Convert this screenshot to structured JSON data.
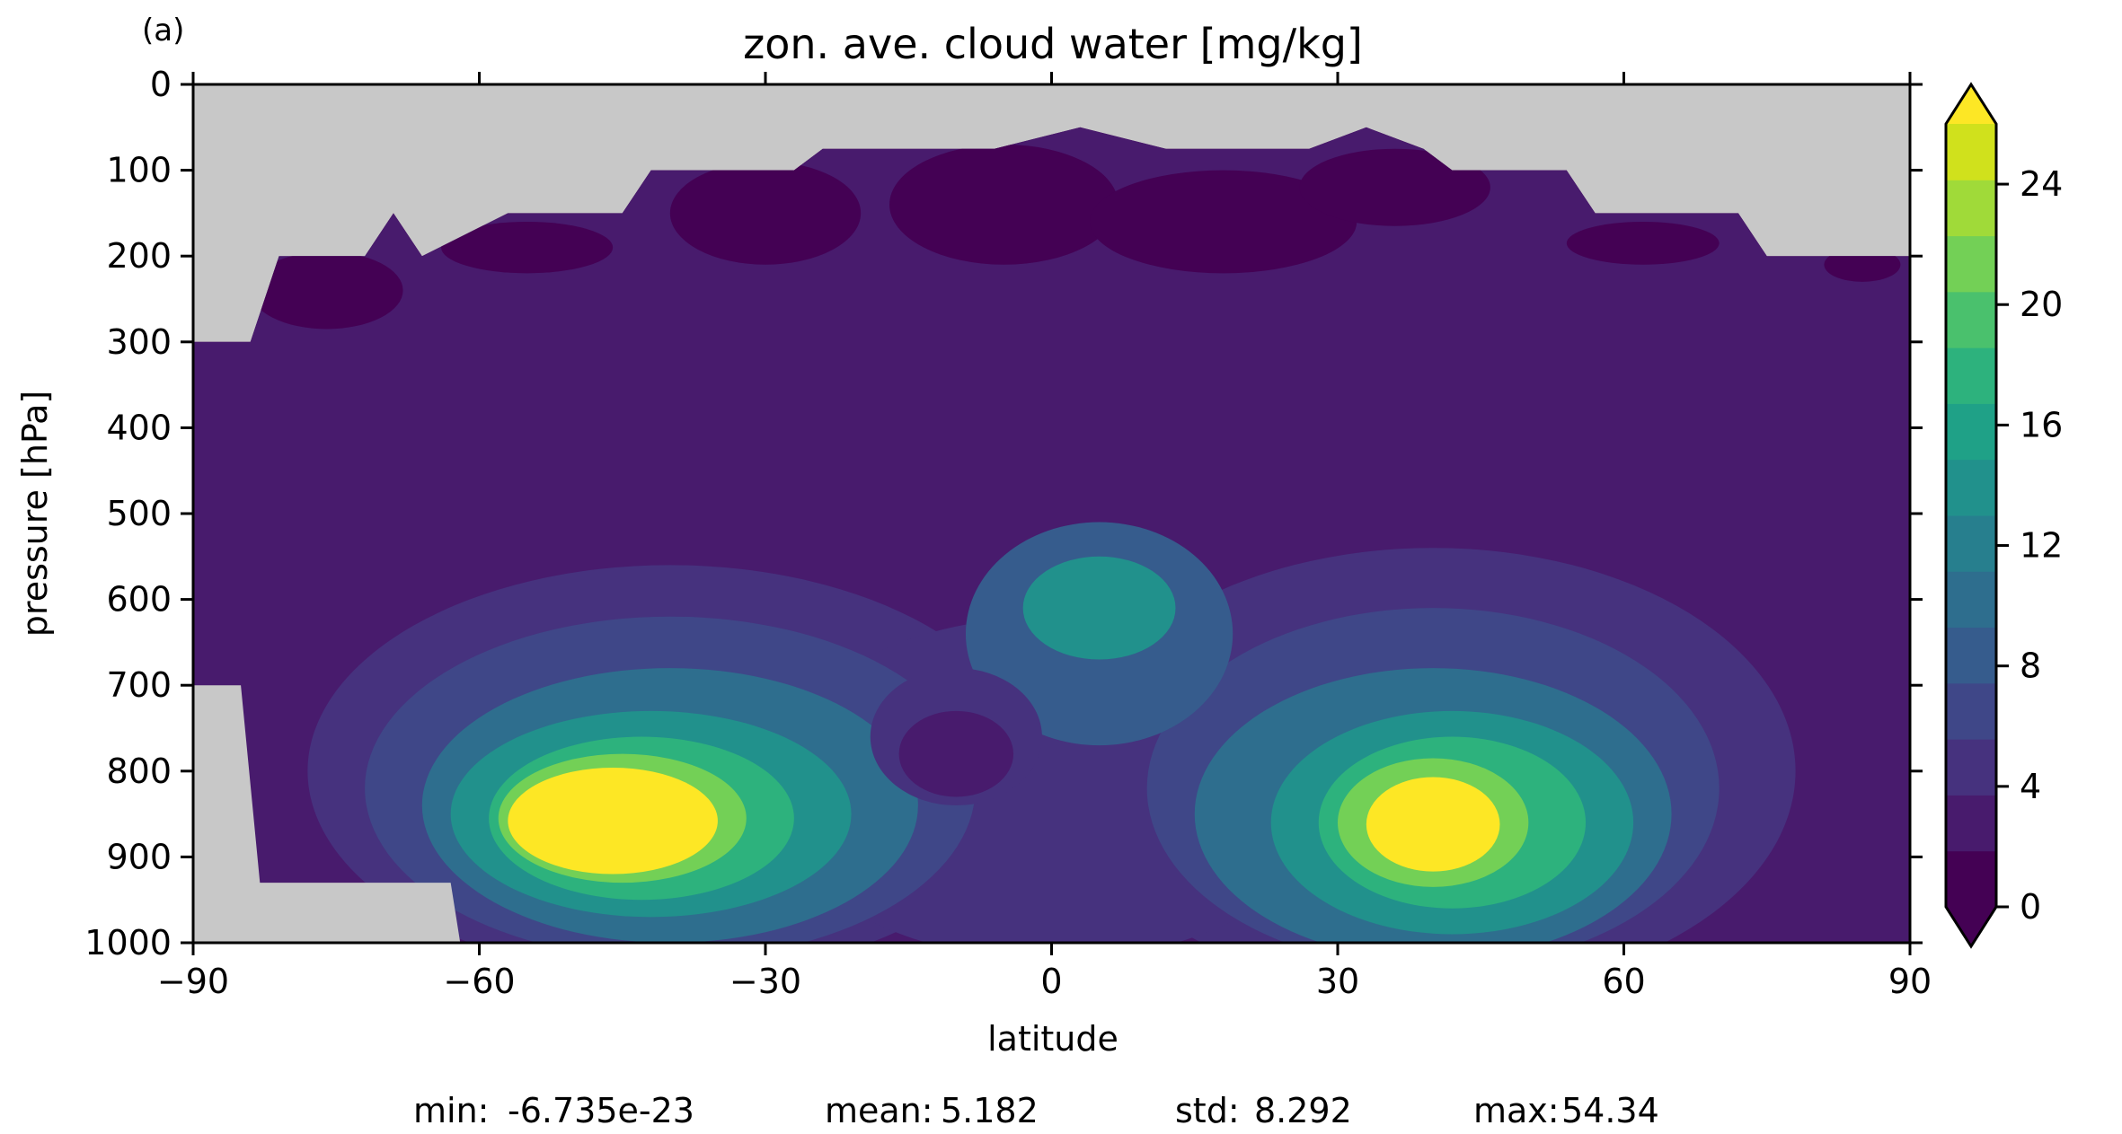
{
  "panel_label": "(a)",
  "chart_data": {
    "type": "heatmap",
    "subtype": "filled-contour",
    "title": "zon. ave. cloud water [mg/kg]",
    "xlabel": "latitude",
    "ylabel": "pressure [hPa]",
    "xlim": [
      -90,
      90
    ],
    "ylim": [
      1000,
      0
    ],
    "y_inverted": true,
    "x_ticks": [
      -90,
      -60,
      -30,
      0,
      30,
      60,
      90
    ],
    "x_tick_labels": [
      "−90",
      "−60",
      "−30",
      "0",
      "30",
      "60",
      "90"
    ],
    "y_ticks": [
      0,
      100,
      200,
      300,
      400,
      500,
      600,
      700,
      800,
      900,
      1000
    ],
    "y_tick_labels": [
      "0",
      "100",
      "200",
      "300",
      "400",
      "500",
      "600",
      "700",
      "800",
      "900",
      "1000"
    ],
    "missing_color": "#c8c8c8",
    "colormap": "viridis",
    "levels": [
      0,
      2,
      4,
      6,
      8,
      10,
      12,
      14,
      16,
      18,
      20,
      22,
      24,
      26
    ],
    "level_colors": [
      "#440154",
      "#481b6d",
      "#46327e",
      "#3f4788",
      "#365c8d",
      "#2e6e8e",
      "#277f8e",
      "#21918c",
      "#1fa187",
      "#2db27d",
      "#4ac16d",
      "#73d056",
      "#a0da39",
      "#d0e11c"
    ],
    "extend_low_color": "#440154",
    "extend_high_color": "#fde725",
    "colorbar_ticks": [
      0,
      4,
      8,
      12,
      16,
      20,
      24
    ],
    "colorbar_extend": "both",
    "data_top_boundary": [
      [
        -90,
        300
      ],
      [
        -84,
        300
      ],
      [
        -81,
        200
      ],
      [
        -72,
        200
      ],
      [
        -69,
        150
      ],
      [
        -66,
        200
      ],
      [
        -57,
        150
      ],
      [
        -45,
        150
      ],
      [
        -42,
        100
      ],
      [
        -27,
        100
      ],
      [
        -24,
        75
      ],
      [
        -6,
        75
      ],
      [
        3,
        50
      ],
      [
        12,
        75
      ],
      [
        27,
        75
      ],
      [
        33,
        50
      ],
      [
        39,
        75
      ],
      [
        42,
        100
      ],
      [
        54,
        100
      ],
      [
        57,
        150
      ],
      [
        72,
        150
      ],
      [
        75,
        200
      ],
      [
        90,
        200
      ]
    ],
    "data_bottom_missing": [
      [
        -90,
        700
      ],
      [
        -85,
        700
      ],
      [
        -83,
        930
      ],
      [
        -63,
        930
      ],
      [
        -62,
        1000
      ]
    ],
    "features": [
      {
        "label": "southern low-level maximum",
        "lat": -45,
        "pressure": 855,
        "value": 26
      },
      {
        "label": "northern low-level maximum",
        "lat": 40,
        "pressure": 860,
        "value": 26
      },
      {
        "label": "equatorial mid-level maximum",
        "lat": 5,
        "pressure": 600,
        "value": 16
      }
    ],
    "stats": {
      "min": "-6.735e-23",
      "mean": "5.182",
      "std": "8.292",
      "max": "54.34"
    },
    "stats_labels": {
      "min": "min:",
      "mean": "mean:",
      "std": "std:",
      "max": "max:"
    }
  }
}
